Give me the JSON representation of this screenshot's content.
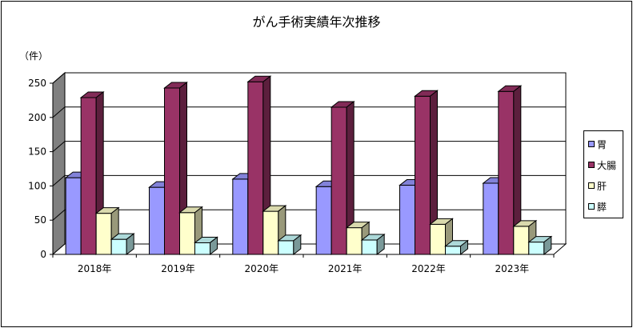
{
  "chart_data": {
    "type": "bar",
    "title": "がん手術実績年次推移",
    "ylabel": "（件）",
    "categories": [
      "2018年",
      "2019年",
      "2020年",
      "2021年",
      "2022年",
      "2023年"
    ],
    "ylim": [
      0,
      250
    ],
    "yticks": [
      0,
      50,
      100,
      150,
      200,
      250
    ],
    "grid": true,
    "legend_position": "right",
    "series": [
      {
        "name": "胃",
        "color": "#9999ff",
        "values": [
          112,
          98,
          110,
          99,
          101,
          104
        ]
      },
      {
        "name": "大腸",
        "color": "#993366",
        "values": [
          229,
          243,
          252,
          215,
          231,
          238
        ]
      },
      {
        "name": "肝",
        "color": "#ffffcc",
        "values": [
          60,
          61,
          63,
          39,
          44,
          41
        ]
      },
      {
        "name": "膵",
        "color": "#ccffff",
        "values": [
          22,
          17,
          20,
          21,
          12,
          18
        ]
      }
    ]
  }
}
